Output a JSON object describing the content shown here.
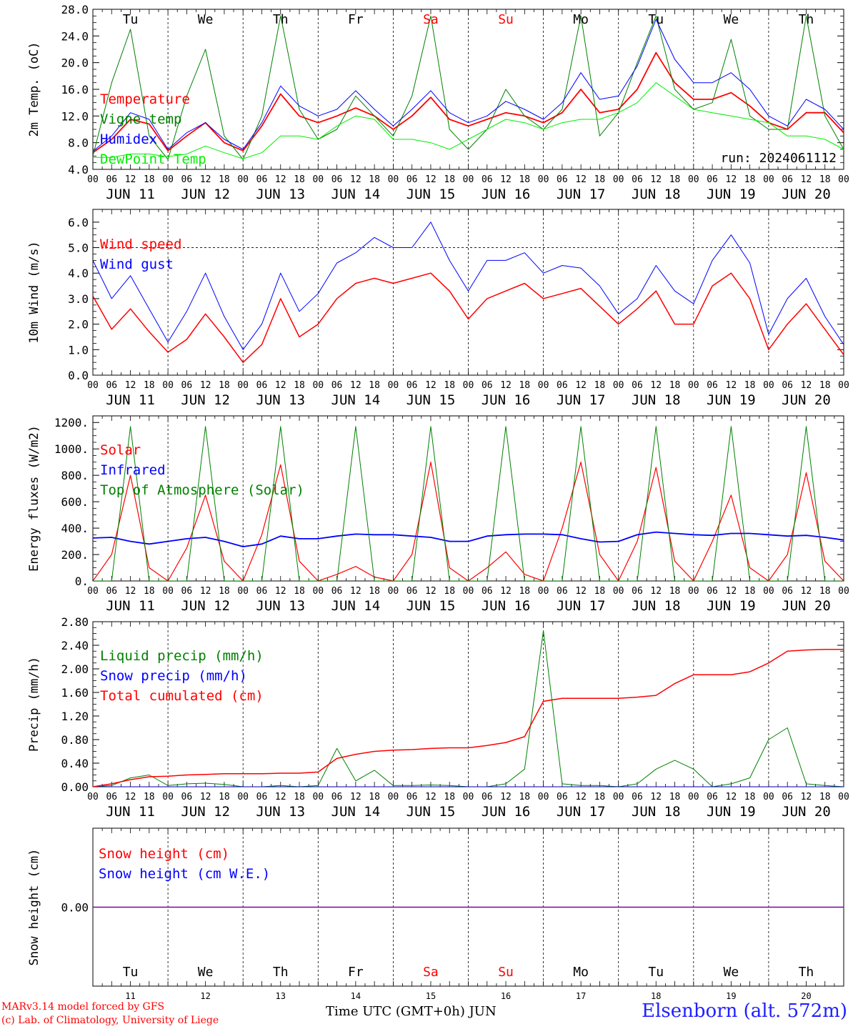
{
  "run_label": "run: 2024061112",
  "days": [
    "Tu",
    "We",
    "Th",
    "Fr",
    "Sa",
    "Su",
    "Mo",
    "Tu",
    "We",
    "Th"
  ],
  "day_colors": [
    "#000000",
    "#000000",
    "#000000",
    "#000000",
    "#ff0000",
    "#ff0000",
    "#000000",
    "#000000",
    "#000000",
    "#000000"
  ],
  "dates": [
    "JUN 11",
    "JUN 12",
    "JUN 13",
    "JUN 14",
    "JUN 15",
    "JUN 16",
    "JUN 17",
    "JUN 18",
    "JUN 19",
    "JUN 20"
  ],
  "bottom_day_numbers": [
    "11",
    "12",
    "13",
    "14",
    "15",
    "16",
    "17",
    "18",
    "19",
    "20"
  ],
  "hour_ticks": [
    "00",
    "06",
    "12",
    "18"
  ],
  "hour_end": "00",
  "footer": {
    "credit1": "MARv3.14 model forced by GFS",
    "credit2": "(c) Lab. of Climatology, University of Liege",
    "x_title": "Time UTC (GMT+0h) JUN",
    "station": "Elsenborn (alt. 572m)"
  },
  "chart_data": [
    {
      "type": "line",
      "ylabel": "2m Temp. (oC)",
      "ylim": [
        4,
        28
      ],
      "yticks": [
        "4.0",
        "8.0",
        "12.0",
        "16.0",
        "20.0",
        "24.0",
        "28.0"
      ],
      "x_unit": "hours since JUN 11 00 UTC",
      "x": [
        0,
        6,
        12,
        18,
        24,
        30,
        36,
        42,
        48,
        54,
        60,
        66,
        72,
        78,
        84,
        90,
        96,
        102,
        108,
        114,
        120,
        126,
        132,
        138,
        144,
        150,
        156,
        162,
        168,
        174,
        180,
        186,
        192,
        198,
        204,
        210,
        216,
        222,
        228,
        234,
        240
      ],
      "series": [
        {
          "name": "Temperature",
          "color": "#ff0000",
          "width": 1.8,
          "values": [
            6.5,
            8.5,
            11.5,
            10.8,
            6.8,
            9.0,
            11.0,
            8.0,
            6.8,
            10.5,
            15.3,
            12.0,
            11.0,
            12.0,
            13.2,
            12.0,
            10.0,
            12.0,
            14.8,
            11.5,
            10.5,
            11.5,
            12.5,
            12.0,
            11.0,
            12.5,
            16.0,
            12.5,
            13.0,
            16.0,
            21.5,
            17.0,
            14.5,
            14.5,
            15.5,
            13.5,
            11.0,
            10.0,
            12.5,
            12.5,
            9.5
          ]
        },
        {
          "name": "Vigne temp",
          "color": "#008000",
          "width": 1.0,
          "values": [
            6.0,
            17.0,
            25.0,
            9.0,
            5.5,
            15.0,
            22.0,
            9.0,
            5.5,
            12.0,
            27.0,
            13.0,
            8.5,
            10.0,
            15.0,
            12.0,
            9.0,
            15.0,
            27.0,
            10.0,
            7.0,
            10.0,
            16.0,
            12.0,
            10.0,
            13.0,
            27.0,
            9.0,
            12.5,
            20.0,
            27.0,
            16.0,
            13.0,
            14.0,
            23.5,
            12.0,
            10.0,
            10.0,
            27.0,
            12.0,
            7.0
          ]
        },
        {
          "name": "Humidex",
          "color": "#0000ff",
          "width": 1.0,
          "values": [
            6.7,
            9.0,
            12.5,
            11.5,
            7.0,
            9.5,
            11.0,
            8.5,
            7.0,
            11.0,
            16.5,
            13.5,
            12.0,
            13.0,
            15.8,
            13.0,
            10.5,
            13.0,
            15.8,
            12.5,
            11.0,
            12.0,
            14.2,
            13.0,
            11.5,
            14.0,
            18.5,
            14.5,
            15.0,
            19.5,
            26.5,
            20.5,
            17.0,
            17.0,
            18.5,
            16.0,
            12.0,
            10.5,
            14.5,
            13.0,
            10.0
          ]
        },
        {
          "name": "DewPoint Temp",
          "color": "#00ee00",
          "width": 1.0,
          "values": [
            5.8,
            5.8,
            6.3,
            6.3,
            5.9,
            6.3,
            7.5,
            6.5,
            5.6,
            6.5,
            9.0,
            9.0,
            8.5,
            10.5,
            12.0,
            11.5,
            8.5,
            8.5,
            8.0,
            7.0,
            8.5,
            10.0,
            11.5,
            11.0,
            10.0,
            11.0,
            11.5,
            11.5,
            12.5,
            14.0,
            17.0,
            15.0,
            13.0,
            12.5,
            12.0,
            11.5,
            11.0,
            9.0,
            9.0,
            8.5,
            7.0
          ]
        }
      ]
    },
    {
      "type": "line",
      "ylabel": "10m Wind (m/s)",
      "ylim": [
        0,
        6.5
      ],
      "yticks": [
        "0.0",
        "1.0",
        "2.0",
        "3.0",
        "4.0",
        "5.0",
        "6.0"
      ],
      "reference_line": 5.0,
      "x": [
        0,
        6,
        12,
        18,
        24,
        30,
        36,
        42,
        48,
        54,
        60,
        66,
        72,
        78,
        84,
        90,
        96,
        102,
        108,
        114,
        120,
        126,
        132,
        138,
        144,
        150,
        156,
        162,
        168,
        174,
        180,
        186,
        192,
        198,
        204,
        210,
        216,
        222,
        228,
        234,
        240
      ],
      "series": [
        {
          "name": "Wind speed",
          "color": "#ff0000",
          "width": 1.5,
          "values": [
            3.1,
            1.8,
            2.6,
            1.7,
            0.9,
            1.4,
            2.4,
            1.5,
            0.5,
            1.2,
            3.0,
            1.5,
            2.0,
            3.0,
            3.6,
            3.8,
            3.6,
            3.8,
            4.0,
            3.3,
            2.2,
            3.0,
            3.3,
            3.6,
            3.0,
            3.2,
            3.4,
            2.7,
            2.0,
            2.6,
            3.3,
            2.0,
            2.0,
            3.5,
            4.0,
            3.0,
            1.0,
            2.0,
            2.8,
            1.8,
            0.8
          ]
        },
        {
          "name": "Wind gust",
          "color": "#0000ff",
          "width": 1.0,
          "values": [
            4.5,
            3.0,
            3.9,
            2.6,
            1.3,
            2.5,
            4.0,
            2.3,
            1.0,
            2.0,
            4.0,
            2.5,
            3.2,
            4.4,
            4.8,
            5.4,
            5.0,
            5.0,
            6.0,
            4.5,
            3.3,
            4.5,
            4.5,
            4.8,
            4.0,
            4.3,
            4.2,
            3.5,
            2.4,
            3.0,
            4.3,
            3.3,
            2.8,
            4.5,
            5.5,
            4.4,
            1.6,
            3.0,
            3.8,
            2.3,
            1.2
          ]
        }
      ]
    },
    {
      "type": "line",
      "ylabel": "Energy fluxes (W/m2)",
      "ylim": [
        0,
        1250
      ],
      "yticks": [
        "0.",
        "200.",
        "400.",
        "600.",
        "800.",
        "1000.",
        "1200."
      ],
      "x": [
        0,
        6,
        12,
        18,
        24,
        30,
        36,
        42,
        48,
        54,
        60,
        66,
        72,
        78,
        84,
        90,
        96,
        102,
        108,
        114,
        120,
        126,
        132,
        138,
        144,
        150,
        156,
        162,
        168,
        174,
        180,
        186,
        192,
        198,
        204,
        210,
        216,
        222,
        228,
        234,
        240
      ],
      "series": [
        {
          "name": "Solar",
          "color": "#ff0000",
          "width": 1.2,
          "values": [
            0,
            200,
            800,
            100,
            0,
            250,
            650,
            150,
            0,
            350,
            880,
            150,
            0,
            50,
            110,
            30,
            0,
            200,
            900,
            100,
            0,
            100,
            220,
            50,
            0,
            400,
            900,
            200,
            0,
            300,
            860,
            150,
            0,
            300,
            650,
            100,
            0,
            200,
            820,
            150,
            0
          ]
        },
        {
          "name": "Infrared",
          "color": "#0000ff",
          "width": 1.8,
          "values": [
            325,
            330,
            300,
            280,
            300,
            320,
            330,
            300,
            260,
            280,
            340,
            320,
            320,
            340,
            355,
            350,
            350,
            340,
            330,
            300,
            300,
            340,
            350,
            355,
            355,
            350,
            320,
            295,
            300,
            350,
            370,
            360,
            350,
            345,
            360,
            360,
            350,
            340,
            345,
            330,
            310
          ]
        },
        {
          "name": "Top of Atmosphere (Solar)",
          "color": "#008000",
          "width": 1.0,
          "values": [
            0,
            0,
            1170,
            0,
            0,
            0,
            1170,
            0,
            0,
            0,
            1170,
            0,
            0,
            0,
            1170,
            0,
            0,
            0,
            1170,
            0,
            0,
            0,
            1170,
            0,
            0,
            0,
            1170,
            0,
            0,
            0,
            1170,
            0,
            0,
            0,
            1170,
            0,
            0,
            0,
            1170,
            0,
            0
          ]
        }
      ]
    },
    {
      "type": "line",
      "ylabel": "Precip (mm/h)",
      "ylim": [
        0,
        2.8
      ],
      "yticks": [
        "0.00",
        "0.40",
        "0.80",
        "1.20",
        "1.60",
        "2.00",
        "2.40",
        "2.80"
      ],
      "x": [
        0,
        6,
        12,
        18,
        24,
        30,
        36,
        42,
        48,
        54,
        60,
        66,
        72,
        78,
        84,
        90,
        96,
        102,
        108,
        114,
        120,
        126,
        132,
        138,
        144,
        150,
        156,
        162,
        168,
        174,
        180,
        186,
        192,
        198,
        204,
        210,
        216,
        222,
        228,
        234,
        240
      ],
      "series": [
        {
          "name": "Liquid precip (mm/h)",
          "color": "#008000",
          "width": 1.0,
          "values": [
            0,
            0.02,
            0.15,
            0.2,
            0.02,
            0.05,
            0.06,
            0.04,
            0,
            0,
            0.02,
            0,
            0.02,
            0.65,
            0.1,
            0.28,
            0.02,
            0.02,
            0.03,
            0.02,
            0,
            0,
            0.05,
            0.3,
            2.65,
            0.05,
            0.02,
            0.02,
            0,
            0.05,
            0.3,
            0.45,
            0.3,
            0,
            0.05,
            0.15,
            0.8,
            1.0,
            0.05,
            0.02,
            0
          ]
        },
        {
          "name": "Snow precip (mm/h)",
          "color": "#0000ff",
          "width": 1.0,
          "values": [
            0,
            0,
            0,
            0,
            0,
            0,
            0,
            0,
            0,
            0,
            0,
            0,
            0,
            0,
            0,
            0,
            0,
            0,
            0,
            0,
            0,
            0,
            0,
            0,
            0,
            0,
            0,
            0,
            0,
            0,
            0,
            0,
            0,
            0,
            0,
            0,
            0,
            0,
            0,
            0,
            0
          ]
        },
        {
          "name": "Total cumulated (cm)",
          "color": "#ff0000",
          "width": 1.5,
          "values": [
            0,
            0.05,
            0.12,
            0.17,
            0.18,
            0.2,
            0.21,
            0.22,
            0.22,
            0.22,
            0.23,
            0.23,
            0.25,
            0.48,
            0.55,
            0.6,
            0.62,
            0.63,
            0.65,
            0.66,
            0.66,
            0.7,
            0.75,
            0.85,
            1.45,
            1.5,
            1.5,
            1.5,
            1.5,
            1.52,
            1.55,
            1.75,
            1.9,
            1.9,
            1.9,
            1.95,
            2.1,
            2.3,
            2.32,
            2.33,
            2.33
          ]
        }
      ]
    },
    {
      "type": "line",
      "ylabel": "Snow height (cm)",
      "ylim": [
        -1,
        1
      ],
      "yticks": [
        "0.00"
      ],
      "x": [
        0,
        240
      ],
      "series": [
        {
          "name": "Snow height (cm)",
          "color": "#ff0000",
          "width": 1.0,
          "values": [
            0,
            0
          ]
        },
        {
          "name": "Snow height (cm W.E.)",
          "color": "#0000ff",
          "width": 1.0,
          "values": [
            0,
            0
          ]
        }
      ]
    }
  ]
}
